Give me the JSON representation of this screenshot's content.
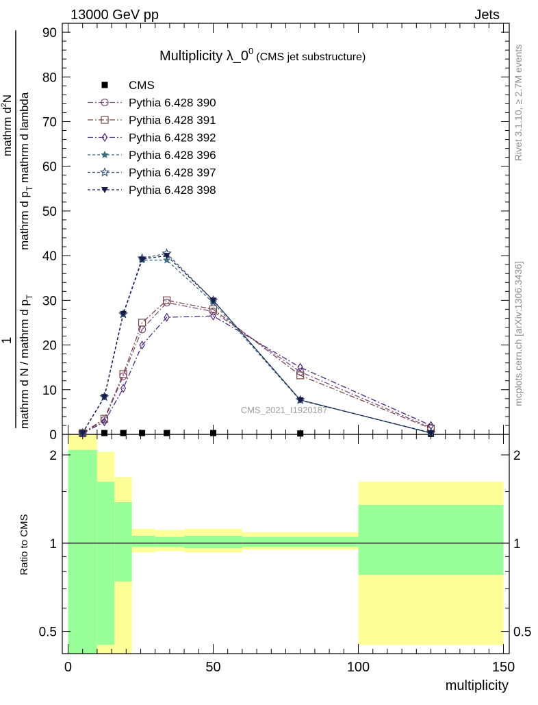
{
  "header": {
    "energy_label": "13000 GeV pp",
    "process_label": "Jets",
    "side_rivet": "Rivet 3.1.10, ≥ 2.7M events",
    "side_mcplots": "mcplots.cern.ch [arXiv:1306.3436]",
    "watermark": "CMS_2021_I1920187"
  },
  "chart_data": {
    "type": "line",
    "title": "Multiplicity λ_0⁰",
    "title_main": "Multiplicity λ_0",
    "title_sup": "0",
    "subtitle": "(CMS jet substructure)",
    "xlabel": "multiplicity",
    "ylabel_top": {
      "numerator": "1",
      "denominator": "mathrm d N / mathrm d p",
      "sub": "T",
      "tail": "mathrm d lambda"
    },
    "ylabel_top_full": "1 / mathrm d N / mathrm d p_T mathrm d lambda  mathrm d²N / mathrm d p_T mathrm d lambda",
    "ylabel_num": "mathrm d²N",
    "ylabel_num_parts": {
      "pre": "mathrm d",
      "sup": "2",
      "post": "N"
    },
    "ylabel_den": {
      "pre": "mathrm d p",
      "sub": "T",
      "post": " mathrm d lambda"
    },
    "ylabel_frac_den": {
      "pre": "mathrm d N / mathrm d p",
      "sub": "T"
    },
    "ylabel_ratio": "Ratio to CMS",
    "xlim": [
      -2,
      152
    ],
    "ylim": [
      0,
      92
    ],
    "x_ticks": [
      0,
      50,
      100,
      150
    ],
    "y_ticks": [
      0,
      10,
      20,
      30,
      40,
      50,
      60,
      70,
      80,
      90
    ],
    "ratio_ylim": [
      0.42,
      2.35
    ],
    "ratio_ticks": [
      0.5,
      1,
      2
    ],
    "ratio_tick_labels": [
      "0.5",
      "1",
      "2"
    ],
    "legend_position": "top-left",
    "series": [
      {
        "name": "CMS",
        "marker": "square-filled",
        "color": "#000000",
        "dash": "none",
        "x": [
          5,
          12.5,
          19,
          25.5,
          34,
          50,
          80,
          125
        ],
        "y": [
          0.1,
          0.3,
          0.3,
          0.3,
          0.3,
          0.3,
          0.2,
          0.1
        ]
      },
      {
        "name": "Pythia 6.428 390",
        "marker": "circle-open",
        "color": "#7a4f7a",
        "dash": "8,3,2,3",
        "x": [
          5,
          12.5,
          19,
          25.5,
          34,
          50,
          80,
          125
        ],
        "y": [
          0.3,
          3.2,
          13.0,
          23.5,
          29.5,
          27.5,
          14.0,
          1.5
        ]
      },
      {
        "name": "Pythia 6.428 391",
        "marker": "square-open",
        "color": "#7a4646",
        "dash": "8,3,2,3",
        "x": [
          5,
          12.5,
          19,
          25.5,
          34,
          50,
          80,
          125
        ],
        "y": [
          0.3,
          3.5,
          13.5,
          25.0,
          30.0,
          28.0,
          13.2,
          1.3
        ]
      },
      {
        "name": "Pythia 6.428 392",
        "marker": "diamond-open",
        "color": "#4a2a7a",
        "dash": "8,3,2,3",
        "x": [
          5,
          12.5,
          19,
          25.5,
          34,
          50,
          80,
          125
        ],
        "y": [
          0.2,
          2.8,
          10.3,
          20.0,
          26.2,
          26.5,
          15.0,
          2.0
        ]
      },
      {
        "name": "Pythia 6.428 396",
        "marker": "star-filled",
        "color": "#3a6e80",
        "dash": "4,3",
        "x": [
          5,
          12.5,
          19,
          25.5,
          34,
          50,
          80,
          125
        ],
        "y": [
          0.3,
          8.3,
          26.8,
          39.0,
          39.0,
          29.5,
          7.6,
          0.4
        ]
      },
      {
        "name": "Pythia 6.428 397",
        "marker": "star-open",
        "color": "#2a4a6a",
        "dash": "4,3",
        "x": [
          5,
          12.5,
          19,
          25.5,
          34,
          50,
          80,
          125
        ],
        "y": [
          0.3,
          8.4,
          26.9,
          39.4,
          40.5,
          30.0,
          7.7,
          0.3
        ]
      },
      {
        "name": "Pythia 6.428 398",
        "marker": "triangle-down-filled",
        "color": "#1a1a4a",
        "dash": "4,3",
        "x": [
          5,
          12.5,
          19,
          25.5,
          34,
          50,
          80,
          125
        ],
        "y": [
          0.3,
          8.4,
          27.0,
          39.2,
          40.0,
          30.0,
          7.7,
          0.3
        ]
      }
    ],
    "ratio_bands": [
      {
        "x0": 0,
        "x1": 10,
        "yellow": [
          0.42,
          2.35
        ],
        "green": [
          0.42,
          2.08
        ]
      },
      {
        "x0": 10,
        "x1": 16,
        "yellow": [
          0.42,
          2.05
        ],
        "green": [
          0.45,
          1.62
        ]
      },
      {
        "x0": 16,
        "x1": 22,
        "yellow": [
          0.42,
          1.68
        ],
        "green": [
          0.74,
          1.38
        ]
      },
      {
        "x0": 22,
        "x1": 30,
        "yellow": [
          0.93,
          1.12
        ],
        "green": [
          0.97,
          1.06
        ]
      },
      {
        "x0": 30,
        "x1": 40,
        "yellow": [
          0.94,
          1.11
        ],
        "green": [
          0.97,
          1.05
        ]
      },
      {
        "x0": 40,
        "x1": 60,
        "yellow": [
          0.93,
          1.12
        ],
        "green": [
          0.96,
          1.06
        ]
      },
      {
        "x0": 60,
        "x1": 100,
        "yellow": [
          0.95,
          1.09
        ],
        "green": [
          0.97,
          1.05
        ]
      },
      {
        "x0": 100,
        "x1": 150,
        "yellow": [
          0.45,
          1.62
        ],
        "green": [
          0.78,
          1.35
        ]
      }
    ],
    "colors": {
      "green_band": "#99ff99",
      "yellow_band": "#ffff99"
    }
  }
}
